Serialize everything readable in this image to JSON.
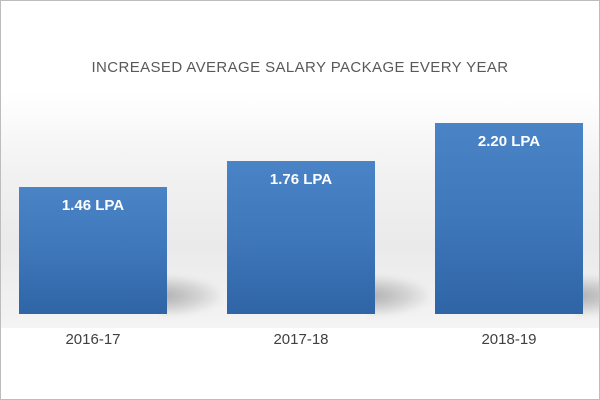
{
  "chart_data": {
    "type": "bar",
    "title": "INCREASED AVERAGE SALARY PACKAGE EVERY YEAR",
    "categories": [
      "2016-17",
      "2017-18",
      "2018-19"
    ],
    "values": [
      1.46,
      1.76,
      2.2
    ],
    "data_labels": [
      "1.46 LPA",
      "1.76 LPA",
      "2.20 LPA"
    ],
    "unit": "LPA",
    "ylim": [
      0,
      2.6
    ],
    "grid": false,
    "legend": "none",
    "xlabel": "",
    "ylabel": "",
    "colors": {
      "bar": "#3f77bb",
      "title": "#595959",
      "tick": "#404040",
      "label": "#ffffff"
    }
  }
}
